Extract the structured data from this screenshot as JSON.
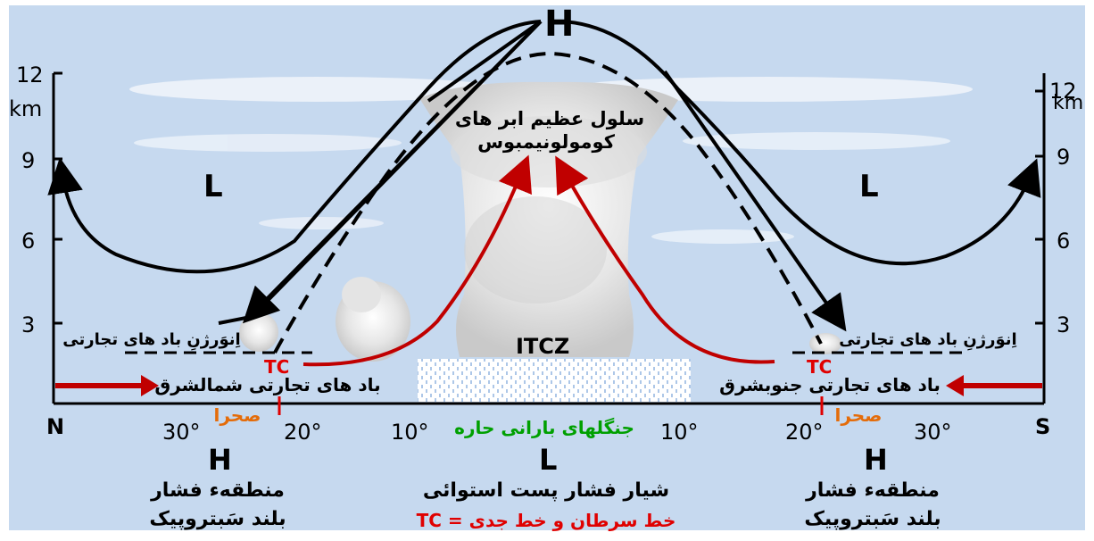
{
  "pressure_labels": {
    "high_top": "H",
    "low_left": "L",
    "low_right": "L",
    "high_north": "H",
    "low_center": "L",
    "high_south": "H"
  },
  "altitude_axis": {
    "ticks": [
      "3",
      "6",
      "9",
      "12"
    ],
    "unit": "km"
  },
  "latitude_axis": {
    "north": "N",
    "south": "S",
    "ticks": [
      "30°",
      "20°",
      "10°",
      "10°",
      "20°",
      "30°"
    ]
  },
  "labels": {
    "cloud": [
      "سلول عظیم ابر های",
      "کومولونیمبوس"
    ],
    "itcz": "ITCZ",
    "trade_inversion_left": "اِنوَرژنِ باد های تجارتی",
    "trade_inversion_right": "اِنوَرژنِ باد های تجارتی",
    "tc_left": "TC",
    "tc_right": "TC",
    "trade_wind_ne": "باد های تجارتی شمالشرق",
    "trade_wind_se": "باد های تجارتی جنوبشرق",
    "desert_left": "صحرا",
    "desert_right": "صحرا",
    "rainforest": "جنگلهای بارانی حاره",
    "subtropic_north": [
      "منطقهء فشار",
      "بلند سَبتروپیک"
    ],
    "subtropic_south": [
      "منطقهء فشار",
      "بلند  سَبتروپیک"
    ],
    "equatorial_trough": "شیار فشار پست استوائی",
    "legend_tc": "TC = خط سرطان و خط جدی"
  },
  "colors": {
    "sky": "#c6d9ef",
    "circulation": "#000000",
    "rising_air": "#c00000",
    "trade_arrow": "#c00000",
    "desert": "#e46c0a",
    "rainforest": "#00a000",
    "legend": "#e00000"
  }
}
